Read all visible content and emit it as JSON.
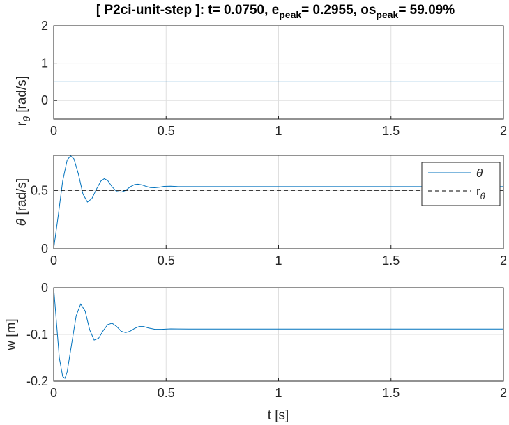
{
  "title": {
    "prefix": "[ P2ci-unit-step ]: t= 0.0750, e",
    "sub1": "peak",
    "mid": "= 0.2955, os",
    "sub2": "peak",
    "suffix": "= 59.09%"
  },
  "colors": {
    "series": "#0072bd",
    "reference": "#000000",
    "axis": "#262626",
    "grid": "#dfdfdf"
  },
  "chart_data": [
    {
      "type": "line",
      "xlabel": "",
      "ylabel": {
        "main": "r",
        "sub": "θ",
        "unit": " [rad/s]"
      },
      "xlim": [
        0,
        2
      ],
      "ylim": [
        -0.5,
        2
      ],
      "xticks": [
        0,
        0.5,
        1,
        1.5,
        2
      ],
      "xticklabels": [
        "0",
        "0.5",
        "1",
        "1.5",
        "2"
      ],
      "yticks": [
        0,
        1,
        2
      ],
      "yticklabels": [
        "0",
        "1",
        "2"
      ],
      "grid": true,
      "series": [
        {
          "x": [
            0,
            2
          ],
          "y": [
            0.5,
            0.5
          ]
        }
      ]
    },
    {
      "type": "line",
      "xlabel": "",
      "ylabel": {
        "main": "θ",
        "unit": " [rad/s]"
      },
      "xlim": [
        0,
        2
      ],
      "ylim": [
        0,
        0.8
      ],
      "xticks": [
        0,
        0.5,
        1,
        1.5,
        2
      ],
      "xticklabels": [
        "0",
        "0.5",
        "1",
        "1.5",
        "2"
      ],
      "yticks": [
        0,
        0.5
      ],
      "yticklabels": [
        "0",
        "0.5"
      ],
      "grid": true,
      "legend": {
        "position": "top-right",
        "entries": [
          {
            "main": "θ"
          },
          {
            "main": "r",
            "sub": "θ"
          }
        ]
      },
      "series": [
        {
          "x": [
            0,
            0.02,
            0.04,
            0.06,
            0.075,
            0.09,
            0.11,
            0.13,
            0.15,
            0.17,
            0.19,
            0.21,
            0.225,
            0.24,
            0.26,
            0.28,
            0.3,
            0.32,
            0.34,
            0.36,
            0.375,
            0.39,
            0.41,
            0.43,
            0.45,
            0.47,
            0.49,
            0.52,
            0.55,
            0.6,
            0.7,
            0.8,
            1.0,
            1.5,
            2.0
          ],
          "y": [
            0,
            0.28,
            0.58,
            0.76,
            0.7955,
            0.77,
            0.64,
            0.47,
            0.4,
            0.43,
            0.51,
            0.58,
            0.6,
            0.585,
            0.53,
            0.49,
            0.485,
            0.5,
            0.53,
            0.55,
            0.553,
            0.548,
            0.535,
            0.524,
            0.522,
            0.527,
            0.534,
            0.536,
            0.533,
            0.532,
            0.532,
            0.532,
            0.532,
            0.532,
            0.532
          ]
        },
        {
          "x": [
            0,
            2
          ],
          "y": [
            0.5,
            0.5
          ],
          "style": "dashed"
        }
      ]
    },
    {
      "type": "line",
      "xlabel": "t [s]",
      "ylabel": {
        "main": "w [m]",
        "unit": ""
      },
      "xlim": [
        0,
        2
      ],
      "ylim": [
        -0.2,
        0
      ],
      "xticks": [
        0,
        0.5,
        1,
        1.5,
        2
      ],
      "xticklabels": [
        "0",
        "0.5",
        "1",
        "1.5",
        "2"
      ],
      "yticks": [
        -0.2,
        -0.1,
        0
      ],
      "yticklabels": [
        "-0.2",
        "-0.1",
        "0"
      ],
      "grid": true,
      "series": [
        {
          "x": [
            0,
            0.01,
            0.025,
            0.04,
            0.05,
            0.06,
            0.08,
            0.1,
            0.12,
            0.14,
            0.16,
            0.18,
            0.2,
            0.22,
            0.24,
            0.26,
            0.28,
            0.3,
            0.32,
            0.34,
            0.36,
            0.38,
            0.4,
            0.42,
            0.45,
            0.48,
            0.52,
            0.6,
            0.7,
            0.8,
            1.0,
            1.5,
            2.0
          ],
          "y": [
            0,
            -0.06,
            -0.15,
            -0.19,
            -0.194,
            -0.18,
            -0.12,
            -0.06,
            -0.035,
            -0.05,
            -0.09,
            -0.112,
            -0.108,
            -0.092,
            -0.079,
            -0.076,
            -0.083,
            -0.093,
            -0.096,
            -0.093,
            -0.087,
            -0.083,
            -0.083,
            -0.086,
            -0.089,
            -0.089,
            -0.088,
            -0.0885,
            -0.0885,
            -0.0885,
            -0.0885,
            -0.0885,
            -0.0885
          ]
        }
      ]
    }
  ]
}
